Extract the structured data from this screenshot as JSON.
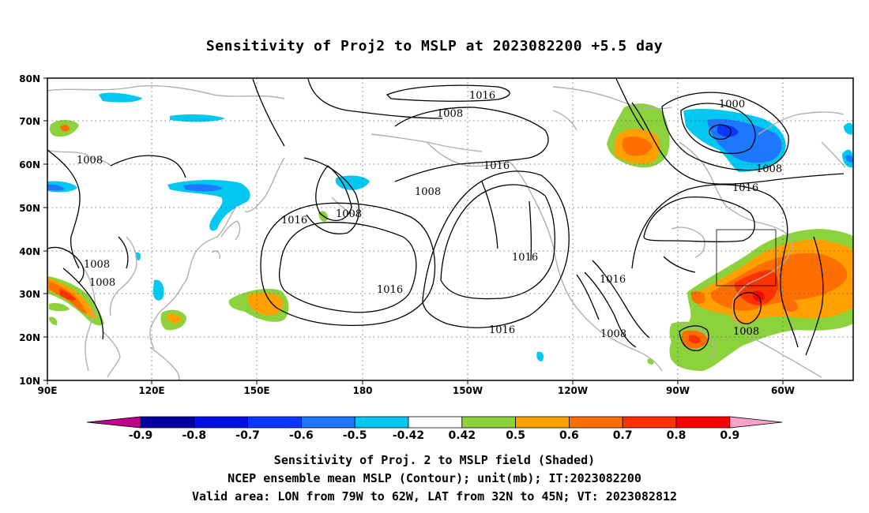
{
  "title": "Sensitivity of Proj2 to MSLP at 2023082200 +5.5 day",
  "lon_labels": [
    "90E",
    "120E",
    "150E",
    "180",
    "150W",
    "120W",
    "90W",
    "60W"
  ],
  "lat_labels": [
    "80N",
    "70N",
    "60N",
    "50N",
    "40N",
    "30N",
    "20N",
    "10N"
  ],
  "contour_labels": [
    "1016",
    "1008",
    "1008",
    "1008",
    "1008",
    "1008",
    "1016",
    "1008",
    "1008",
    "1016",
    "1016",
    "1016",
    "1016",
    "1016",
    "1016",
    "1008",
    "1000",
    "1008",
    "1016",
    "1008"
  ],
  "colorbar": {
    "tick_labels": [
      "-0.9",
      "-0.8",
      "-0.7",
      "-0.6",
      "-0.5",
      "-0.42",
      "0.42",
      "0.5",
      "0.6",
      "0.7",
      "0.8",
      "0.9"
    ],
    "colors": [
      "#c0008c",
      "#0000a0",
      "#0010e6",
      "#0a37ff",
      "#1e78ff",
      "#00c8f0",
      "#ffffff",
      "#8cd23c",
      "#ffa000",
      "#ff6e00",
      "#ff3200",
      "#ff0000",
      "#ffa0c8"
    ]
  },
  "captions": [
    "Sensitivity of Proj. 2 to MSLP field (Shaded)",
    "NCEP ensemble mean MSLP (Contour); unit(mb); IT:2023082200",
    "Valid area: LON from 79W to 62W, LAT from 32N to 45N; VT: 2023082812"
  ]
}
